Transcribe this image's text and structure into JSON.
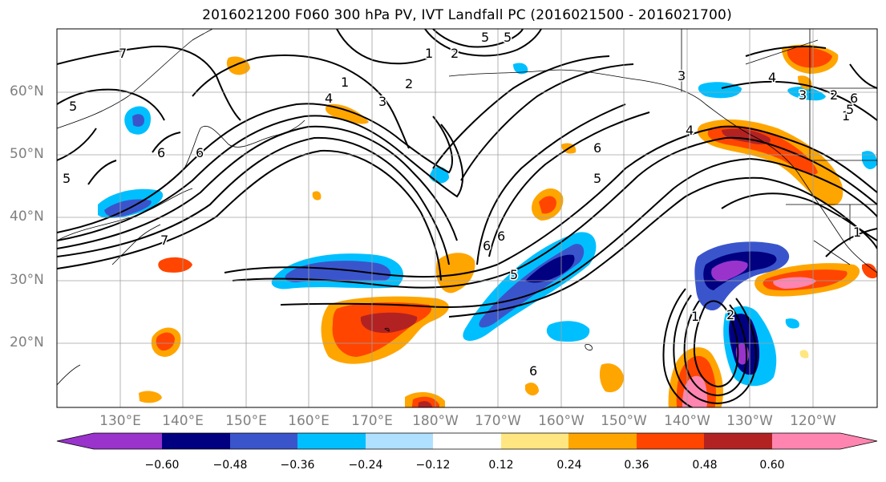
{
  "title": "2016021200 F060 300 hPa PV, IVT Landfall PC (2016021500 - 2016021700)",
  "map": {
    "lat_labels": [
      "60°N",
      "50°N",
      "40°N",
      "30°N",
      "20°N"
    ],
    "lon_labels": [
      "130°E",
      "140°E",
      "150°E",
      "160°E",
      "170°E",
      "180°W",
      "170°W",
      "160°W",
      "150°W",
      "140°W",
      "130°W",
      "120°W"
    ],
    "pv_contour_labels": [
      "7",
      "5",
      "6",
      "6",
      "5",
      "3",
      "2",
      "1",
      "1",
      "6",
      "5",
      "4",
      "3",
      "2",
      "5",
      "6",
      "6",
      "6",
      "5",
      "4",
      "3",
      "2",
      "1",
      "1",
      "2",
      "7",
      "4",
      "5",
      "6",
      "5",
      "1"
    ]
  },
  "colorbar": {
    "tick_labels": [
      "−0.60",
      "−0.48",
      "−0.36",
      "−0.24",
      "−0.12",
      "0.12",
      "0.24",
      "0.36",
      "0.48",
      "0.60"
    ],
    "colors": [
      "#9933cc",
      "#000080",
      "#3a55cc",
      "#00bfff",
      "#b0e0ff",
      "#ffffff",
      "#ffe680",
      "#ffa500",
      "#ff4500",
      "#b22222",
      "#ff85b0"
    ]
  }
}
